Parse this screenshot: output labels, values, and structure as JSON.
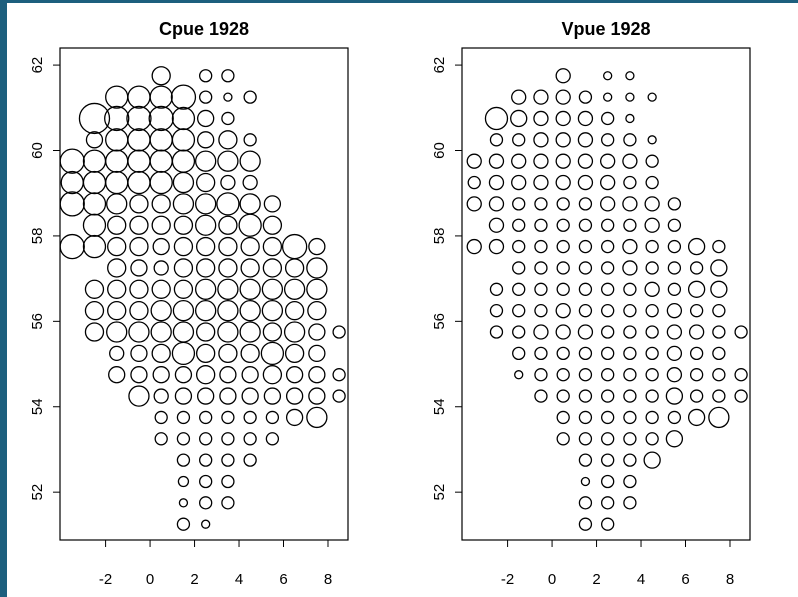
{
  "chart_data": [
    {
      "type": "bubble",
      "title": "Cpue 1928",
      "xlim": [
        -4.05,
        8.9
      ],
      "ylim": [
        50.88,
        62.4
      ],
      "xticks": [
        -2,
        0,
        2,
        4,
        6,
        8
      ],
      "yticks": [
        52,
        54,
        56,
        58,
        60,
        62
      ],
      "rows": [
        {
          "y": 61.75,
          "x": [
            0.5,
            2.5,
            3.5
          ],
          "sizes": [
            9,
            6,
            6
          ]
        },
        {
          "y": 61.25,
          "x": [
            -1.5,
            -0.5,
            0.5,
            1.5,
            2.5,
            3.5,
            4.5
          ],
          "sizes": [
            11,
            11,
            11,
            12,
            6,
            4,
            6
          ]
        },
        {
          "y": 60.75,
          "x": [
            -2.5,
            -1.5,
            -0.5,
            0.5,
            1.5,
            2.5,
            3.5
          ],
          "sizes": [
            15,
            12,
            12,
            12,
            11,
            8,
            6
          ]
        },
        {
          "y": 60.25,
          "x": [
            -2.5,
            -1.5,
            -0.5,
            0.5,
            1.5,
            2.5,
            3.5,
            4.5
          ],
          "sizes": [
            8,
            11,
            11,
            11,
            11,
            8,
            9,
            6
          ]
        },
        {
          "y": 59.75,
          "x": [
            -3.5,
            -2.5,
            -1.5,
            -0.5,
            0.5,
            1.5,
            2.5,
            3.5,
            4.5
          ],
          "sizes": [
            12,
            11,
            11,
            11,
            11,
            11,
            10,
            10,
            10
          ]
        },
        {
          "y": 59.25,
          "x": [
            -3.5,
            -2.5,
            -1.5,
            -0.5,
            0.5,
            1.5,
            2.5,
            3.5,
            4.5
          ],
          "sizes": [
            11,
            11,
            11,
            11,
            11,
            10,
            9,
            7,
            7
          ]
        },
        {
          "y": 58.75,
          "x": [
            -3.5,
            -2.5,
            -1.5,
            -0.5,
            0.5,
            1.5,
            2.5,
            3.5,
            4.5,
            5.5
          ],
          "sizes": [
            12,
            11,
            10,
            9,
            9,
            10,
            10,
            11,
            10,
            8
          ]
        },
        {
          "y": 58.25,
          "x": [
            -2.5,
            -1.5,
            -0.5,
            0.5,
            1.5,
            2.5,
            3.5,
            4.5,
            5.5
          ],
          "sizes": [
            11,
            9,
            9,
            9,
            9,
            10,
            9,
            11,
            9
          ]
        },
        {
          "y": 57.75,
          "x": [
            -3.5,
            -2.5,
            -1.5,
            -0.5,
            0.5,
            1.5,
            2.5,
            3.5,
            4.5,
            5.5,
            6.5,
            7.5
          ],
          "sizes": [
            12,
            11,
            9,
            9,
            8,
            9,
            9,
            9,
            9,
            9,
            12,
            8
          ]
        },
        {
          "y": 57.25,
          "x": [
            -1.5,
            -0.5,
            0.5,
            1.5,
            2.5,
            3.5,
            4.5,
            5.5,
            6.5,
            7.5
          ],
          "sizes": [
            9,
            8,
            7,
            9,
            9,
            9,
            9,
            9,
            9,
            10
          ]
        },
        {
          "y": 56.75,
          "x": [
            -2.5,
            -1.5,
            -0.5,
            0.5,
            1.5,
            2.5,
            3.5,
            4.5,
            5.5,
            6.5,
            7.5
          ],
          "sizes": [
            9,
            9,
            9,
            9,
            9,
            10,
            10,
            10,
            10,
            10,
            10
          ]
        },
        {
          "y": 56.25,
          "x": [
            -2.5,
            -1.5,
            -0.5,
            0.5,
            1.5,
            2.5,
            3.5,
            4.5,
            5.5,
            6.5,
            7.5
          ],
          "sizes": [
            9,
            9,
            9,
            10,
            10,
            10,
            10,
            10,
            10,
            9,
            9
          ]
        },
        {
          "y": 55.75,
          "x": [
            -2.5,
            -1.5,
            -0.5,
            0.5,
            1.5,
            2.5,
            3.5,
            4.5,
            5.5,
            6.5,
            7.5,
            8.5
          ],
          "sizes": [
            9,
            10,
            10,
            10,
            10,
            9,
            10,
            10,
            9,
            10,
            8,
            6
          ]
        },
        {
          "y": 55.25,
          "x": [
            -1.5,
            -0.5,
            0.5,
            1.5,
            2.5,
            3.5,
            4.5,
            5.5,
            6.5,
            7.5
          ],
          "sizes": [
            7,
            8,
            9,
            11,
            9,
            9,
            9,
            11,
            9,
            8
          ]
        },
        {
          "y": 54.75,
          "x": [
            -1.5,
            -0.5,
            0.5,
            1.5,
            2.5,
            3.5,
            4.5,
            5.5,
            6.5,
            7.5,
            8.5
          ],
          "sizes": [
            8,
            8,
            8,
            8,
            9,
            8,
            8,
            9,
            8,
            8,
            6
          ]
        },
        {
          "y": 54.25,
          "x": [
            -0.5,
            0.5,
            1.5,
            2.5,
            3.5,
            4.5,
            5.5,
            6.5,
            7.5,
            8.5
          ],
          "sizes": [
            10,
            7,
            8,
            8,
            8,
            8,
            8,
            8,
            8,
            6
          ]
        },
        {
          "y": 53.75,
          "x": [
            0.5,
            1.5,
            2.5,
            3.5,
            4.5,
            5.5,
            6.5,
            7.5
          ],
          "sizes": [
            6,
            6,
            6,
            6,
            6,
            6,
            8,
            10
          ]
        },
        {
          "y": 53.25,
          "x": [
            0.5,
            1.5,
            2.5,
            3.5,
            4.5,
            5.5
          ],
          "sizes": [
            6,
            6,
            6,
            6,
            6,
            6
          ]
        },
        {
          "y": 52.75,
          "x": [
            1.5,
            2.5,
            3.5,
            4.5
          ],
          "sizes": [
            6,
            6,
            6,
            6
          ]
        },
        {
          "y": 52.25,
          "x": [
            1.5,
            2.5,
            3.5
          ],
          "sizes": [
            5,
            6,
            6
          ]
        },
        {
          "y": 51.75,
          "x": [
            1.5,
            2.5,
            3.5
          ],
          "sizes": [
            4,
            6,
            6
          ]
        },
        {
          "y": 51.25,
          "x": [
            1.5,
            2.5
          ],
          "sizes": [
            6,
            4
          ]
        }
      ]
    },
    {
      "type": "bubble",
      "title": "Vpue 1928",
      "xlim": [
        -4.05,
        8.9
      ],
      "ylim": [
        50.88,
        62.4
      ],
      "xticks": [
        -2,
        0,
        2,
        4,
        6,
        8
      ],
      "yticks": [
        52,
        54,
        56,
        58,
        60,
        62
      ],
      "rows": [
        {
          "y": 61.75,
          "x": [
            0.5,
            2.5,
            3.5
          ],
          "sizes": [
            7,
            4,
            4
          ]
        },
        {
          "y": 61.25,
          "x": [
            -1.5,
            -0.5,
            0.5,
            1.5,
            2.5,
            3.5,
            4.5
          ],
          "sizes": [
            7,
            7,
            7,
            6,
            4,
            4,
            4
          ]
        },
        {
          "y": 60.75,
          "x": [
            -2.5,
            -1.5,
            -0.5,
            0.5,
            1.5,
            2.5,
            3.5
          ],
          "sizes": [
            11,
            8,
            7,
            7,
            7,
            6,
            4
          ]
        },
        {
          "y": 60.25,
          "x": [
            -2.5,
            -1.5,
            -0.5,
            0.5,
            1.5,
            2.5,
            3.5,
            4.5
          ],
          "sizes": [
            6,
            6,
            7,
            7,
            7,
            6,
            6,
            4
          ]
        },
        {
          "y": 59.75,
          "x": [
            -3.5,
            -2.5,
            -1.5,
            -0.5,
            0.5,
            1.5,
            2.5,
            3.5,
            4.5
          ],
          "sizes": [
            7,
            7,
            7,
            7,
            7,
            7,
            7,
            7,
            6
          ]
        },
        {
          "y": 59.25,
          "x": [
            -3.5,
            -2.5,
            -1.5,
            -0.5,
            0.5,
            1.5,
            2.5,
            3.5,
            4.5
          ],
          "sizes": [
            6,
            7,
            7,
            7,
            7,
            7,
            7,
            6,
            6
          ]
        },
        {
          "y": 58.75,
          "x": [
            -3.5,
            -2.5,
            -1.5,
            -0.5,
            0.5,
            1.5,
            2.5,
            3.5,
            4.5,
            5.5
          ],
          "sizes": [
            7,
            7,
            6,
            6,
            6,
            6,
            7,
            7,
            7,
            6
          ]
        },
        {
          "y": 58.25,
          "x": [
            -2.5,
            -1.5,
            -0.5,
            0.5,
            1.5,
            2.5,
            3.5,
            4.5,
            5.5
          ],
          "sizes": [
            7,
            6,
            6,
            6,
            6,
            6,
            6,
            7,
            6
          ]
        },
        {
          "y": 57.75,
          "x": [
            -3.5,
            -2.5,
            -1.5,
            -0.5,
            0.5,
            1.5,
            2.5,
            3.5,
            4.5,
            5.5,
            6.5,
            7.5
          ],
          "sizes": [
            7,
            7,
            6,
            6,
            6,
            6,
            6,
            7,
            6,
            6,
            8,
            6
          ]
        },
        {
          "y": 57.25,
          "x": [
            -1.5,
            -0.5,
            0.5,
            1.5,
            2.5,
            3.5,
            4.5,
            5.5,
            6.5,
            7.5
          ],
          "sizes": [
            6,
            6,
            6,
            6,
            6,
            7,
            6,
            6,
            6,
            8
          ]
        },
        {
          "y": 56.75,
          "x": [
            -2.5,
            -1.5,
            -0.5,
            0.5,
            1.5,
            2.5,
            3.5,
            4.5,
            5.5,
            6.5,
            7.5
          ],
          "sizes": [
            6,
            6,
            6,
            6,
            6,
            6,
            6,
            7,
            6,
            8,
            8
          ]
        },
        {
          "y": 56.25,
          "x": [
            -2.5,
            -1.5,
            -0.5,
            0.5,
            1.5,
            2.5,
            3.5,
            4.5,
            5.5,
            6.5,
            7.5
          ],
          "sizes": [
            6,
            6,
            6,
            7,
            6,
            6,
            6,
            6,
            7,
            6,
            6
          ]
        },
        {
          "y": 55.75,
          "x": [
            -2.5,
            -1.5,
            -0.5,
            0.5,
            1.5,
            2.5,
            3.5,
            4.5,
            5.5,
            6.5,
            7.5,
            8.5
          ],
          "sizes": [
            6,
            6,
            7,
            7,
            7,
            6,
            6,
            6,
            7,
            7,
            6,
            6
          ]
        },
        {
          "y": 55.25,
          "x": [
            -1.5,
            -0.5,
            0.5,
            1.5,
            2.5,
            3.5,
            4.5,
            5.5,
            6.5,
            7.5
          ],
          "sizes": [
            6,
            6,
            6,
            6,
            6,
            6,
            6,
            7,
            6,
            6
          ]
        },
        {
          "y": 54.75,
          "x": [
            -1.5,
            -0.5,
            0.5,
            1.5,
            2.5,
            3.5,
            4.5,
            5.5,
            6.5,
            7.5,
            8.5
          ],
          "sizes": [
            4,
            6,
            6,
            6,
            6,
            6,
            6,
            7,
            6,
            6,
            6
          ]
        },
        {
          "y": 54.25,
          "x": [
            -0.5,
            0.5,
            1.5,
            2.5,
            3.5,
            4.5,
            5.5,
            6.5,
            7.5,
            8.5
          ],
          "sizes": [
            6,
            6,
            6,
            6,
            6,
            6,
            8,
            6,
            6,
            6
          ]
        },
        {
          "y": 53.75,
          "x": [
            0.5,
            1.5,
            2.5,
            3.5,
            4.5,
            5.5,
            6.5,
            7.5
          ],
          "sizes": [
            6,
            6,
            6,
            6,
            6,
            6,
            8,
            10
          ]
        },
        {
          "y": 53.25,
          "x": [
            0.5,
            1.5,
            2.5,
            3.5,
            4.5,
            5.5
          ],
          "sizes": [
            6,
            6,
            6,
            6,
            6,
            8
          ]
        },
        {
          "y": 52.75,
          "x": [
            1.5,
            2.5,
            3.5,
            4.5
          ],
          "sizes": [
            6,
            6,
            6,
            8
          ]
        },
        {
          "y": 52.25,
          "x": [
            1.5,
            2.5,
            3.5
          ],
          "sizes": [
            4,
            6,
            6
          ]
        },
        {
          "y": 51.75,
          "x": [
            1.5,
            2.5,
            3.5
          ],
          "sizes": [
            6,
            6,
            6
          ]
        },
        {
          "y": 51.25,
          "x": [
            1.5,
            2.5
          ],
          "sizes": [
            6,
            6
          ]
        }
      ]
    }
  ]
}
